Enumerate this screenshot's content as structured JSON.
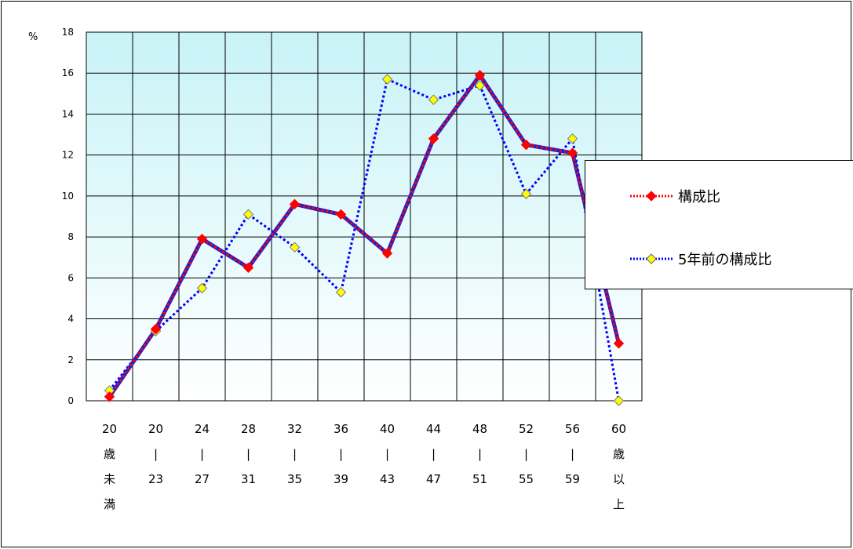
{
  "chart_data": {
    "type": "line",
    "ylabel": "%",
    "ylim": [
      0,
      18
    ],
    "yticks": [
      0,
      2,
      4,
      6,
      8,
      10,
      12,
      14,
      16,
      18
    ],
    "categories": [
      [
        "20",
        "歳",
        "未",
        "満"
      ],
      [
        "20",
        "|",
        "23"
      ],
      [
        "24",
        "|",
        "27"
      ],
      [
        "28",
        "|",
        "31"
      ],
      [
        "32",
        "|",
        "35"
      ],
      [
        "36",
        "|",
        "39"
      ],
      [
        "40",
        "|",
        "43"
      ],
      [
        "44",
        "|",
        "47"
      ],
      [
        "48",
        "|",
        "51"
      ],
      [
        "52",
        "|",
        "55"
      ],
      [
        "56",
        "|",
        "59"
      ],
      [
        "60",
        "歳",
        "以",
        "上"
      ]
    ],
    "series": [
      {
        "name": "構成比",
        "color": "#ff0000",
        "line_color": "#1f1fcf",
        "marker": "diamond-red",
        "values": [
          0.2,
          3.5,
          7.9,
          6.5,
          9.6,
          9.1,
          7.2,
          12.8,
          15.9,
          12.5,
          12.1,
          2.8
        ]
      },
      {
        "name": "5年前の構成比",
        "color": "#0000ff",
        "marker": "diamond-yellow",
        "values": [
          0.5,
          3.4,
          5.5,
          9.1,
          7.5,
          5.3,
          15.7,
          14.7,
          15.4,
          10.1,
          12.8,
          0.0
        ]
      }
    ],
    "grid": true,
    "legend_position": "right"
  }
}
